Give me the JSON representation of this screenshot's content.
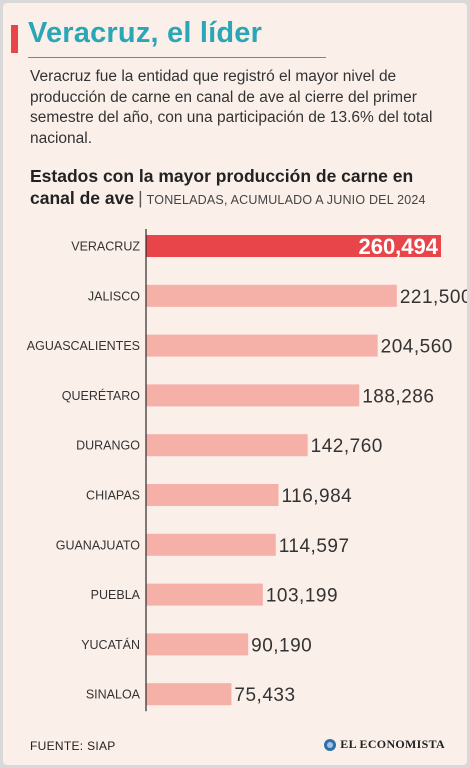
{
  "header": {
    "title": "Veracruz, el líder",
    "lead": "Veracruz fue la entidad que registró el mayor nivel de producción de carne en canal de ave al cierre del primer semestre del año, con una participación de 13.6% del total nacional."
  },
  "chart_header": {
    "title": "Estados con la mayor producción de carne en canal de ave",
    "separator": "|",
    "subtitle": "TONELADAS, ACUMULADO A JUNIO DEL 2024"
  },
  "chart_data": {
    "type": "bar",
    "orientation": "horizontal",
    "title": "Estados con la mayor producción de carne en canal de ave",
    "subtitle": "TONELADAS, ACUMULADO A JUNIO DEL 2024",
    "categories": [
      "VERACRUZ",
      "JALISCO",
      "AGUASCALIENTES",
      "QUERÉTARO",
      "DURANGO",
      "CHIAPAS",
      "GUANAJUATO",
      "PUEBLA",
      "YUCATÁN",
      "SINALOA"
    ],
    "values": [
      260494,
      221500,
      204560,
      188286,
      142760,
      116984,
      114597,
      103199,
      90190,
      75433
    ],
    "value_labels": [
      "260,494",
      "221,500",
      "204,560",
      "188,286",
      "142,760",
      "116,984",
      "114,597",
      "103,199",
      "90,190",
      "75,433"
    ],
    "highlight_index": 0,
    "colors": {
      "highlight": "#e8454b",
      "bar": "#f5b0a8",
      "axis": "#2b2b2b"
    },
    "xlim": [
      0,
      260494
    ],
    "grid": false,
    "legend": "none"
  },
  "footer": {
    "source": "FUENTE: SIAP",
    "brand": "EL ECONOMISTA",
    "brand_icon": "globe-icon"
  }
}
